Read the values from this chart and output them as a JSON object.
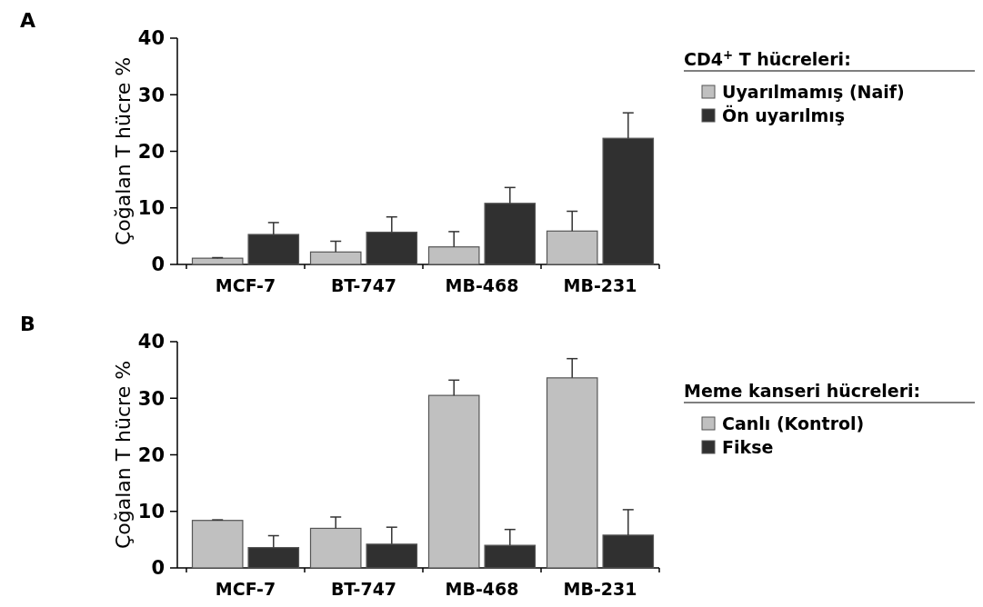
{
  "chart_data": [
    {
      "type": "bar",
      "title": "A",
      "ylabel": "Çoğalan T hücre %",
      "legend_title": "CD4$^{+}$ T hücreleri:",
      "categories": [
        "MCF-7",
        "BT-747",
        "MB-468",
        "MB-231"
      ],
      "ylim": [
        0,
        40
      ],
      "yticks": [
        0,
        10,
        20,
        30,
        40
      ],
      "legend": "right",
      "grid": false,
      "series": [
        {
          "name": "Uyarılmamış (Naif)",
          "color": "#c0c0c0",
          "values": [
            1.1,
            2.2,
            3.1,
            5.9
          ],
          "errors": [
            [
              1.1,
              1.2
            ],
            [
              2.2,
              4.1
            ],
            [
              3.1,
              5.8
            ],
            [
              5.9,
              9.4
            ]
          ]
        },
        {
          "name": "Ön uyarılmış",
          "color": "#303030",
          "values": [
            5.3,
            5.7,
            10.8,
            22.3
          ],
          "errors": [
            [
              5.3,
              7.4
            ],
            [
              5.7,
              8.4
            ],
            [
              10.8,
              13.6
            ],
            [
              22.3,
              26.8
            ]
          ]
        }
      ]
    },
    {
      "type": "bar",
      "title": "B",
      "ylabel": "Çoğalan T hücre %",
      "legend_title": "Meme kanseri hücreleri:",
      "categories": [
        "MCF-7",
        "BT-747",
        "MB-468",
        "MB-231"
      ],
      "ylim": [
        0,
        40
      ],
      "yticks": [
        0,
        10,
        20,
        30,
        40
      ],
      "legend": "right",
      "grid": false,
      "series": [
        {
          "name": "Canlı (Kontrol)",
          "color": "#c0c0c0",
          "values": [
            8.4,
            7.0,
            30.5,
            33.6
          ],
          "errors": [
            [
              8.4,
              8.5
            ],
            [
              7.0,
              9.0
            ],
            [
              30.5,
              33.2
            ],
            [
              33.6,
              37.0
            ]
          ]
        },
        {
          "name": "Fikse",
          "color": "#303030",
          "values": [
            3.6,
            4.2,
            4.0,
            5.8
          ],
          "errors": [
            [
              3.6,
              5.7
            ],
            [
              4.2,
              7.2
            ],
            [
              4.0,
              6.8
            ],
            [
              5.8,
              10.3
            ]
          ]
        }
      ]
    }
  ]
}
